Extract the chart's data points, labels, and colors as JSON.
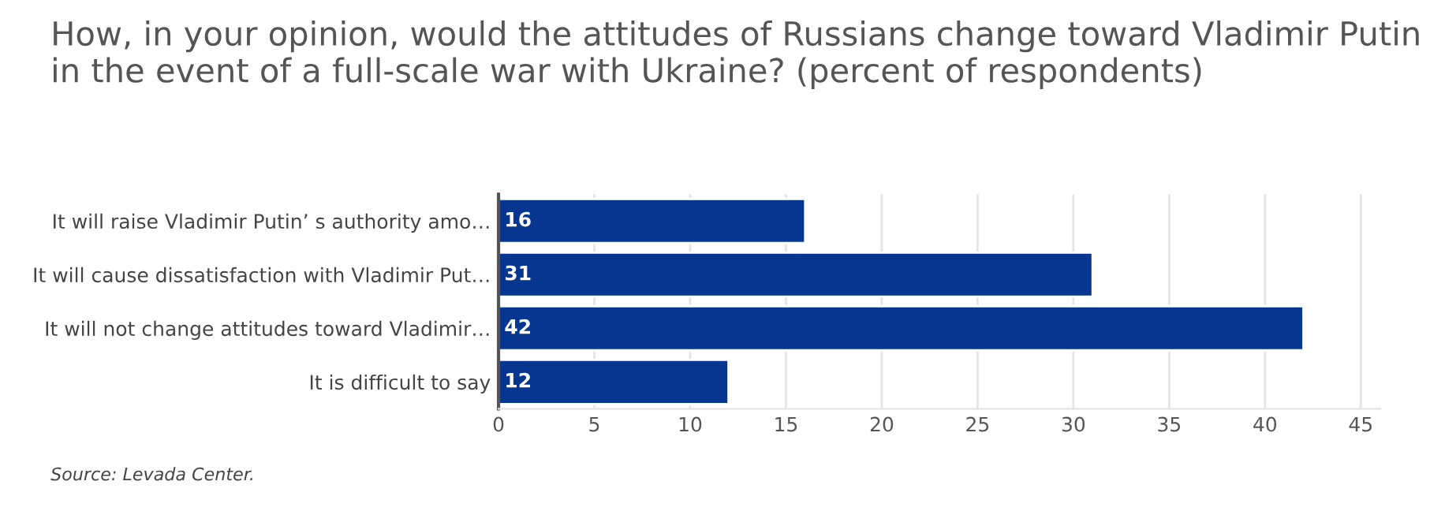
{
  "chart_data": {
    "type": "bar",
    "orientation": "horizontal",
    "title": "How, in your opinion, would the attitudes of Russians change toward Vladimir Putin in the event of a full-scale war with Ukraine? (percent of respondents)",
    "categories": [
      "It will raise Vladimir Putin’ s authority amo…",
      "It will cause dissatisfaction with Vladimir Put…",
      "It will not change attitudes toward Vladimir…",
      "It is difficult to say"
    ],
    "values": [
      16,
      31,
      42,
      12
    ],
    "color": "#06368f",
    "data_labels": true,
    "xlim": [
      0,
      46
    ],
    "xticks": [
      0,
      5,
      10,
      15,
      20,
      25,
      30,
      35,
      40,
      45
    ],
    "grid": "x",
    "annotations": [
      "Source: Levada Center."
    ]
  }
}
